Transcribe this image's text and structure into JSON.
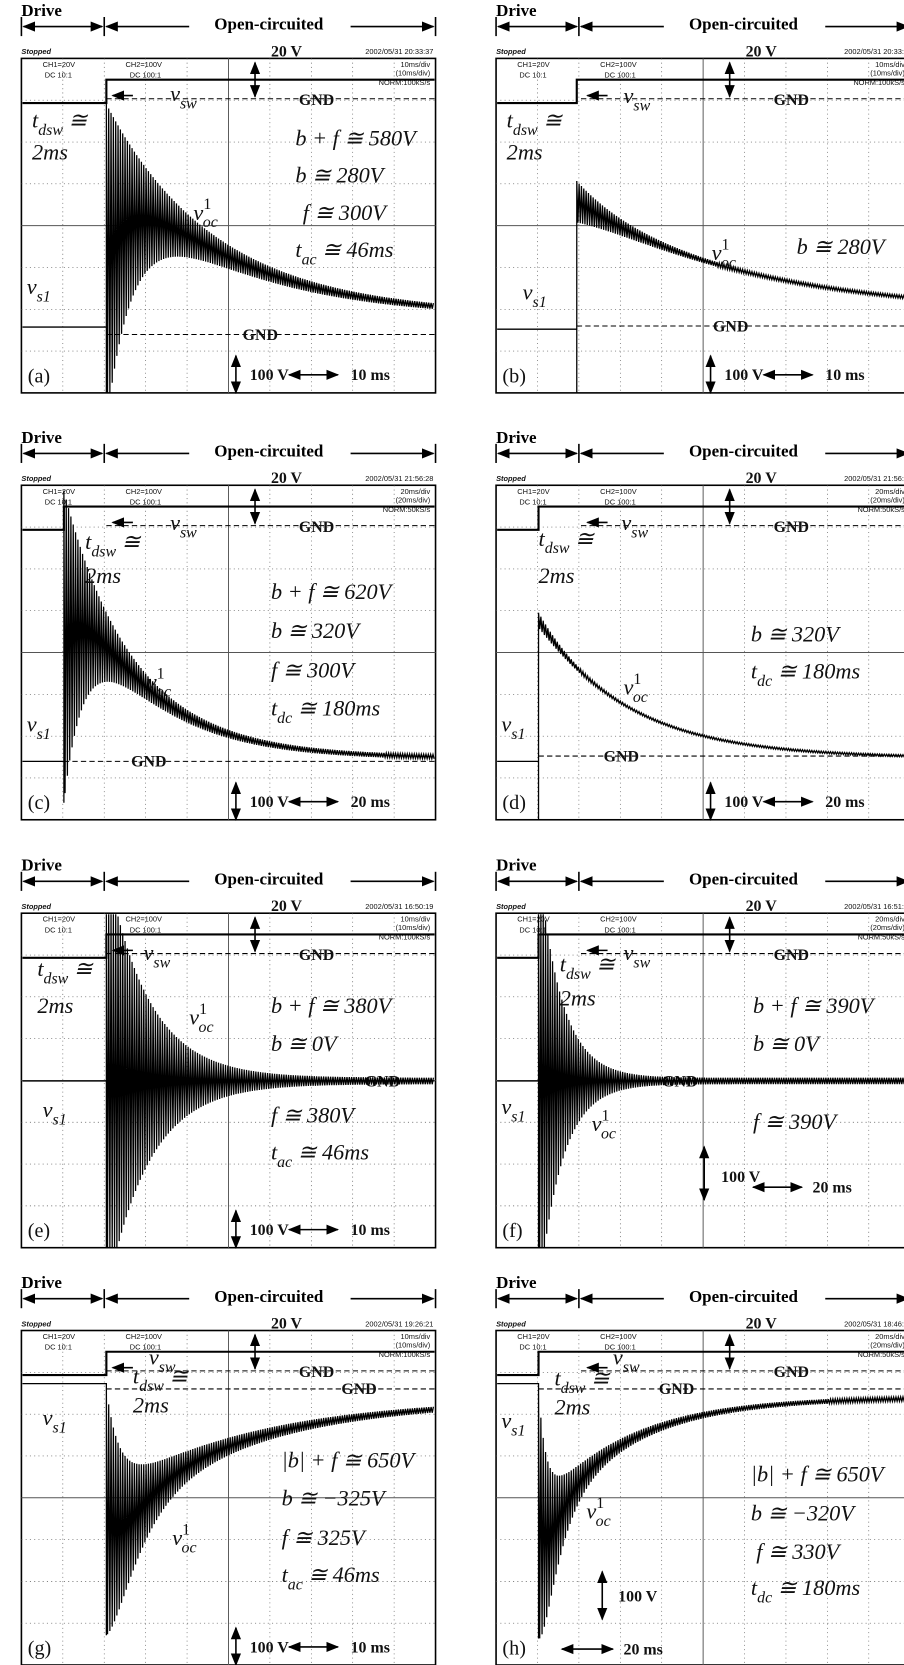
{
  "panels": [
    {
      "label": "(a)",
      "drive": "Drive",
      "state": "Open-circuited",
      "status": "Stopped",
      "ch1": "CH1=20V",
      "coupling": "DC 10:1",
      "ch2": "CH2=100V",
      "ch2_coupling": "DC 100:1",
      "timestamp": "2002/05/31 20:33:37",
      "timebase": "10ms/div",
      "zoom": "(10ms/div)",
      "sampling": "NORM:100kS/s",
      "v_scale": "20 V",
      "gnd_top": "GND",
      "gnd_bottom": "GND",
      "v_div": "100 V",
      "t_div": "10 ms",
      "annotations": [
        {
          "text": "v",
          "sub": "sw"
        },
        {
          "text": "t",
          "sub": "dsw",
          "after": " ≅"
        },
        {
          "text": "2ms"
        },
        {
          "text": "b + f ≅ 580V"
        },
        {
          "text": "b ≅ 280V"
        },
        {
          "text": "f ≅ 300V"
        },
        {
          "text": "v",
          "sup": "1",
          "sub": "oc"
        },
        {
          "text": "t",
          "sub": "ac",
          "after": " ≅ 46ms"
        },
        {
          "text": "v",
          "sub": "s1"
        }
      ]
    },
    {
      "label": "(b)",
      "drive": "Drive",
      "state": "Open-circuited",
      "status": "Stopped",
      "ch1": "CH1=20V",
      "coupling": "DC 10:1",
      "ch2": "CH2=100V",
      "ch2_coupling": "DC 100:1",
      "timestamp": "2002/05/31 20:33:5",
      "timebase": "10ms/div",
      "zoom": "(10ms/div)",
      "sampling": "NORM:100kS/s",
      "v_scale": "20 V",
      "gnd_top": "GND",
      "gnd_bottom": "GND",
      "v_div": "100 V",
      "t_div": "10 ms",
      "annotations": [
        {
          "text": "v",
          "sub": "sw"
        },
        {
          "text": "t",
          "sub": "dsw",
          "after": " ≅"
        },
        {
          "text": "2ms"
        },
        {
          "text": "v",
          "sup": "1",
          "sub": "oc"
        },
        {
          "text": "b ≅ 280V"
        },
        {
          "text": "v",
          "sub": "s1"
        }
      ]
    },
    {
      "label": "(c)",
      "drive": "Drive",
      "state": "Open-circuited",
      "status": "Stopped",
      "ch1": "CH1=20V",
      "coupling": "DC 10:1",
      "ch2": "CH2=100V",
      "ch2_coupling": "DC 100:1",
      "timestamp": "2002/05/31 21:56:28",
      "timebase": "20ms/div",
      "zoom": "(20ms/div)",
      "sampling": "NORM:50kS/s",
      "v_scale": "20 V",
      "gnd_top": "GND",
      "gnd_bottom": "GND",
      "v_div": "100 V",
      "t_div": "20 ms",
      "annotations": [
        {
          "text": "v",
          "sub": "sw"
        },
        {
          "text": "t",
          "sub": "dsw",
          "after": " ≅"
        },
        {
          "text": "2ms"
        },
        {
          "text": "b + f ≅ 620V"
        },
        {
          "text": "b ≅ 320V"
        },
        {
          "text": "f ≅ 300V"
        },
        {
          "text": "v",
          "sup": "1",
          "sub": "oc"
        },
        {
          "text": "t",
          "sub": "dc",
          "after": " ≅ 180ms"
        },
        {
          "text": "v",
          "sub": "s1"
        }
      ]
    },
    {
      "label": "(d)",
      "drive": "Drive",
      "state": "Open-circuited",
      "status": "Stopped",
      "ch1": "CH1=20V",
      "coupling": "DC 10:1",
      "ch2": "CH2=100V",
      "ch2_coupling": "DC 100:1",
      "timestamp": "2002/05/31 21:56:4",
      "timebase": "20ms/div",
      "zoom": "(20ms/div)",
      "sampling": "NORM:50kS/s",
      "v_scale": "20 V",
      "gnd_top": "GND",
      "gnd_bottom": "GND",
      "v_div": "100 V",
      "t_div": "20 ms",
      "annotations": [
        {
          "text": "v",
          "sub": "sw"
        },
        {
          "text": "t",
          "sub": "dsw",
          "after": " ≅"
        },
        {
          "text": "2ms"
        },
        {
          "text": "b ≅ 320V"
        },
        {
          "text": "v",
          "sup": "1",
          "sub": "oc"
        },
        {
          "text": "t",
          "sub": "dc",
          "after": " ≅ 180ms"
        },
        {
          "text": "v",
          "sub": "s1"
        }
      ]
    },
    {
      "label": "(e)",
      "drive": "Drive",
      "state": "Open-circuited",
      "status": "Stopped",
      "ch1": "CH1=20V",
      "coupling": "DC 10:1",
      "ch2": "CH2=100V",
      "ch2_coupling": "DC 100:1",
      "timestamp": "2002/05/31 16:50:19",
      "timebase": "10ms/div",
      "zoom": "(10ms/div)",
      "sampling": "NORM:100kS/s",
      "v_scale": "20 V",
      "gnd_top": "GND",
      "gnd_bottom": "GND",
      "v_div": "100 V",
      "t_div": "10 ms",
      "annotations": [
        {
          "text": "v",
          "sub": "sw"
        },
        {
          "text": "t",
          "sub": "dsw",
          "after": " ≅"
        },
        {
          "text": "2ms"
        },
        {
          "text": "b + f ≅ 380V"
        },
        {
          "text": "v",
          "sup": "1",
          "sub": "oc"
        },
        {
          "text": "b ≅ 0V"
        },
        {
          "text": "v",
          "sub": "s1"
        },
        {
          "text": "f ≅ 380V"
        },
        {
          "text": "t",
          "sub": "ac",
          "after": " ≅ 46ms"
        }
      ]
    },
    {
      "label": "(f)",
      "drive": "Drive",
      "state": "Open-circuited",
      "status": "Stopped",
      "ch1": "CH1=20V",
      "coupling": "DC 10:1",
      "ch2": "CH2=100V",
      "ch2_coupling": "DC 100:1",
      "timestamp": "2002/05/31 16:51:3",
      "timebase": "20ms/div",
      "zoom": "(20ms/div)",
      "sampling": "NORM:50kS/s",
      "v_scale": "20 V",
      "gnd_top": "GND",
      "gnd_bottom": "GND",
      "v_div": "100 V",
      "t_div": "20 ms",
      "annotations": [
        {
          "text": "v",
          "sub": "sw"
        },
        {
          "text": "t",
          "sub": "dsw",
          "after": " ≅"
        },
        {
          "text": "2ms"
        },
        {
          "text": "b + f ≅ 390V"
        },
        {
          "text": "b ≅ 0V"
        },
        {
          "text": "v",
          "sub": "s1"
        },
        {
          "text": "v",
          "sup": "1",
          "sub": "oc"
        },
        {
          "text": "f ≅ 390V"
        }
      ]
    },
    {
      "label": "(g)",
      "drive": "Drive",
      "state": "Open-circuited",
      "status": "Stopped",
      "ch1": "CH1=20V",
      "coupling": "DC 10:1",
      "ch2": "CH2=100V",
      "ch2_coupling": "DC 100:1",
      "timestamp": "2002/05/31 19:26:21",
      "timebase": "10ms/div",
      "zoom": "(10ms/div)",
      "sampling": "NORM:100kS/s",
      "v_scale": "20 V",
      "gnd_top": "GND",
      "gnd_bottom": "GND",
      "v_div": "100 V",
      "t_div": "10 ms",
      "annotations": [
        {
          "text": "v",
          "sub": "sw"
        },
        {
          "text": "t",
          "sub": "dsw",
          "after": " ≅"
        },
        {
          "text": "2ms"
        },
        {
          "text": "v",
          "sub": "s1"
        },
        {
          "text": "|b| + f ≅ 650V"
        },
        {
          "text": "b ≅ −325V"
        },
        {
          "text": "v",
          "sup": "1",
          "sub": "oc"
        },
        {
          "text": "f ≅ 325V"
        },
        {
          "text": "t",
          "sub": "ac",
          "after": " ≅ 46ms"
        }
      ]
    },
    {
      "label": "(h)",
      "drive": "Drive",
      "state": "Open-circuited",
      "status": "Stopped",
      "ch1": "CH1=20V",
      "coupling": "DC 10:1",
      "ch2": "CH2=100V",
      "ch2_coupling": "DC 100:1",
      "timestamp": "2002/05/31 18:46:0",
      "timebase": "20ms/div",
      "zoom": "(20ms/div)",
      "sampling": "NORM:50kS/s",
      "v_scale": "20 V",
      "gnd_top": "GND",
      "gnd_bottom": "GND",
      "v_div": "100 V",
      "t_div": "20 ms",
      "annotations": [
        {
          "text": "v",
          "sub": "sw"
        },
        {
          "text": "t",
          "sub": "dsw",
          "after": " ≅"
        },
        {
          "text": "2ms"
        },
        {
          "text": "v",
          "sub": "s1"
        },
        {
          "text": "|b| + f ≅ 650V"
        },
        {
          "text": "b ≅ −320V"
        },
        {
          "text": "v",
          "sup": "1",
          "sub": "oc"
        },
        {
          "text": "f ≅ 330V"
        },
        {
          "text": "t",
          "sub": "dc",
          "after": " ≅ 180ms"
        }
      ]
    }
  ]
}
